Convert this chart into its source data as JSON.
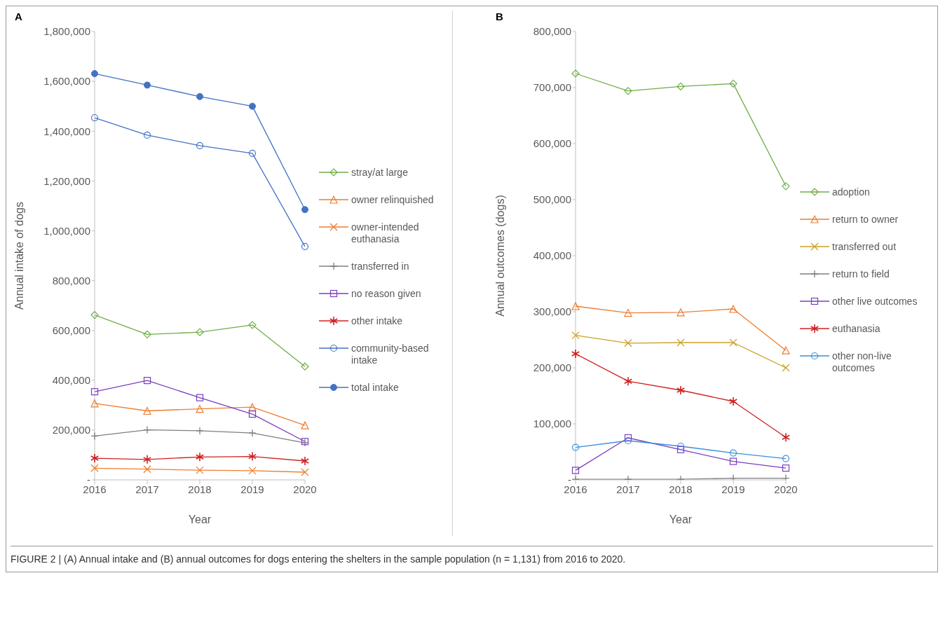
{
  "chart_data": [
    {
      "type": "line",
      "title": "A",
      "xlabel": "Year",
      "ylabel": "Annual intake of dogs",
      "categories": [
        "2016",
        "2017",
        "2018",
        "2019",
        "2020"
      ],
      "ylim": [
        0,
        1800000
      ],
      "yticks": [
        {
          "value": 0,
          "label": "-"
        },
        {
          "value": 200000,
          "label": "200,000"
        },
        {
          "value": 400000,
          "label": "400,000"
        },
        {
          "value": 600000,
          "label": "600,000"
        },
        {
          "value": 800000,
          "label": "800,000"
        },
        {
          "value": 1000000,
          "label": "1,000,000"
        },
        {
          "value": 1200000,
          "label": "1,200,000"
        },
        {
          "value": 1400000,
          "label": "1,400,000"
        },
        {
          "value": 1600000,
          "label": "1,600,000"
        },
        {
          "value": 1800000,
          "label": "1,800,000"
        }
      ],
      "grid": false,
      "legend": "right",
      "series": [
        {
          "name": "stray/at large",
          "color": "#70ad47",
          "marker": "diamond",
          "values": [
            662000,
            584000,
            593000,
            622000,
            455000
          ]
        },
        {
          "name": "owner relinquished",
          "color": "#ed7d31",
          "marker": "triangle",
          "values": [
            307000,
            277000,
            285000,
            292000,
            219000
          ]
        },
        {
          "name": "owner-intended euthanasia",
          "color": "#ed7d31",
          "marker": "x",
          "values": [
            47000,
            43000,
            39000,
            37000,
            31000
          ]
        },
        {
          "name": "transferred in",
          "color": "#7f7f7f",
          "marker": "plus",
          "values": [
            176000,
            201000,
            197000,
            188000,
            149000
          ]
        },
        {
          "name": "no reason given",
          "color": "#7b3fbf",
          "marker": "square",
          "values": [
            354000,
            399000,
            330000,
            264000,
            154000
          ]
        },
        {
          "name": "other intake",
          "color": "#d02020",
          "marker": "cross",
          "values": [
            87000,
            82000,
            92000,
            94000,
            76000
          ]
        },
        {
          "name": "community-based intake",
          "color": "#4472c4",
          "marker": "circle",
          "values": [
            1454000,
            1384000,
            1342000,
            1311000,
            937000
          ]
        },
        {
          "name": "total intake",
          "color": "#4472c4",
          "marker": "filled_circle",
          "values": [
            1631000,
            1585000,
            1539000,
            1500000,
            1085000
          ]
        }
      ],
      "annotations": [
        "FIGURE 2 | (A) Annual intake and (B) annual outcomes for dogs entering the shelters in the sample population (n = 1,131) from 2016 to 2020."
      ]
    },
    {
      "type": "line",
      "title": "B",
      "xlabel": "Year",
      "ylabel": "Annual outcomes (dogs)",
      "categories": [
        "2016",
        "2017",
        "2018",
        "2019",
        "2020"
      ],
      "ylim": [
        0,
        800000
      ],
      "yticks": [
        {
          "value": 0,
          "label": "-"
        },
        {
          "value": 100000,
          "label": "100,000"
        },
        {
          "value": 200000,
          "label": "200,000"
        },
        {
          "value": 300000,
          "label": "300,000"
        },
        {
          "value": 400000,
          "label": "400,000"
        },
        {
          "value": 500000,
          "label": "500,000"
        },
        {
          "value": 600000,
          "label": "600,000"
        },
        {
          "value": 700000,
          "label": "700,000"
        },
        {
          "value": 800000,
          "label": "800,000"
        }
      ],
      "grid": false,
      "legend": "right",
      "series": [
        {
          "name": "adoption",
          "color": "#70ad47",
          "marker": "diamond",
          "values": [
            725000,
            694000,
            702000,
            707000,
            524000
          ]
        },
        {
          "name": "return to owner",
          "color": "#ed7d31",
          "marker": "triangle",
          "values": [
            310000,
            298000,
            299000,
            305000,
            231000
          ]
        },
        {
          "name": "transferred out",
          "color": "#c9a227",
          "marker": "x",
          "values": [
            258000,
            244000,
            245000,
            245000,
            200000
          ]
        },
        {
          "name": "return to field",
          "color": "#7f7f7f",
          "marker": "plus",
          "values": [
            1000,
            1000,
            1000,
            3000,
            3000
          ]
        },
        {
          "name": "other live outcomes",
          "color": "#7b3fbf",
          "marker": "square",
          "values": [
            17000,
            75000,
            54000,
            33000,
            21000
          ]
        },
        {
          "name": "euthanasia",
          "color": "#d02020",
          "marker": "cross",
          "values": [
            225000,
            176000,
            160000,
            140000,
            76000
          ]
        },
        {
          "name": "other non-live outcomes",
          "color": "#3a8fd9",
          "marker": "circle",
          "values": [
            58000,
            70000,
            60000,
            48000,
            38000
          ]
        }
      ]
    }
  ]
}
